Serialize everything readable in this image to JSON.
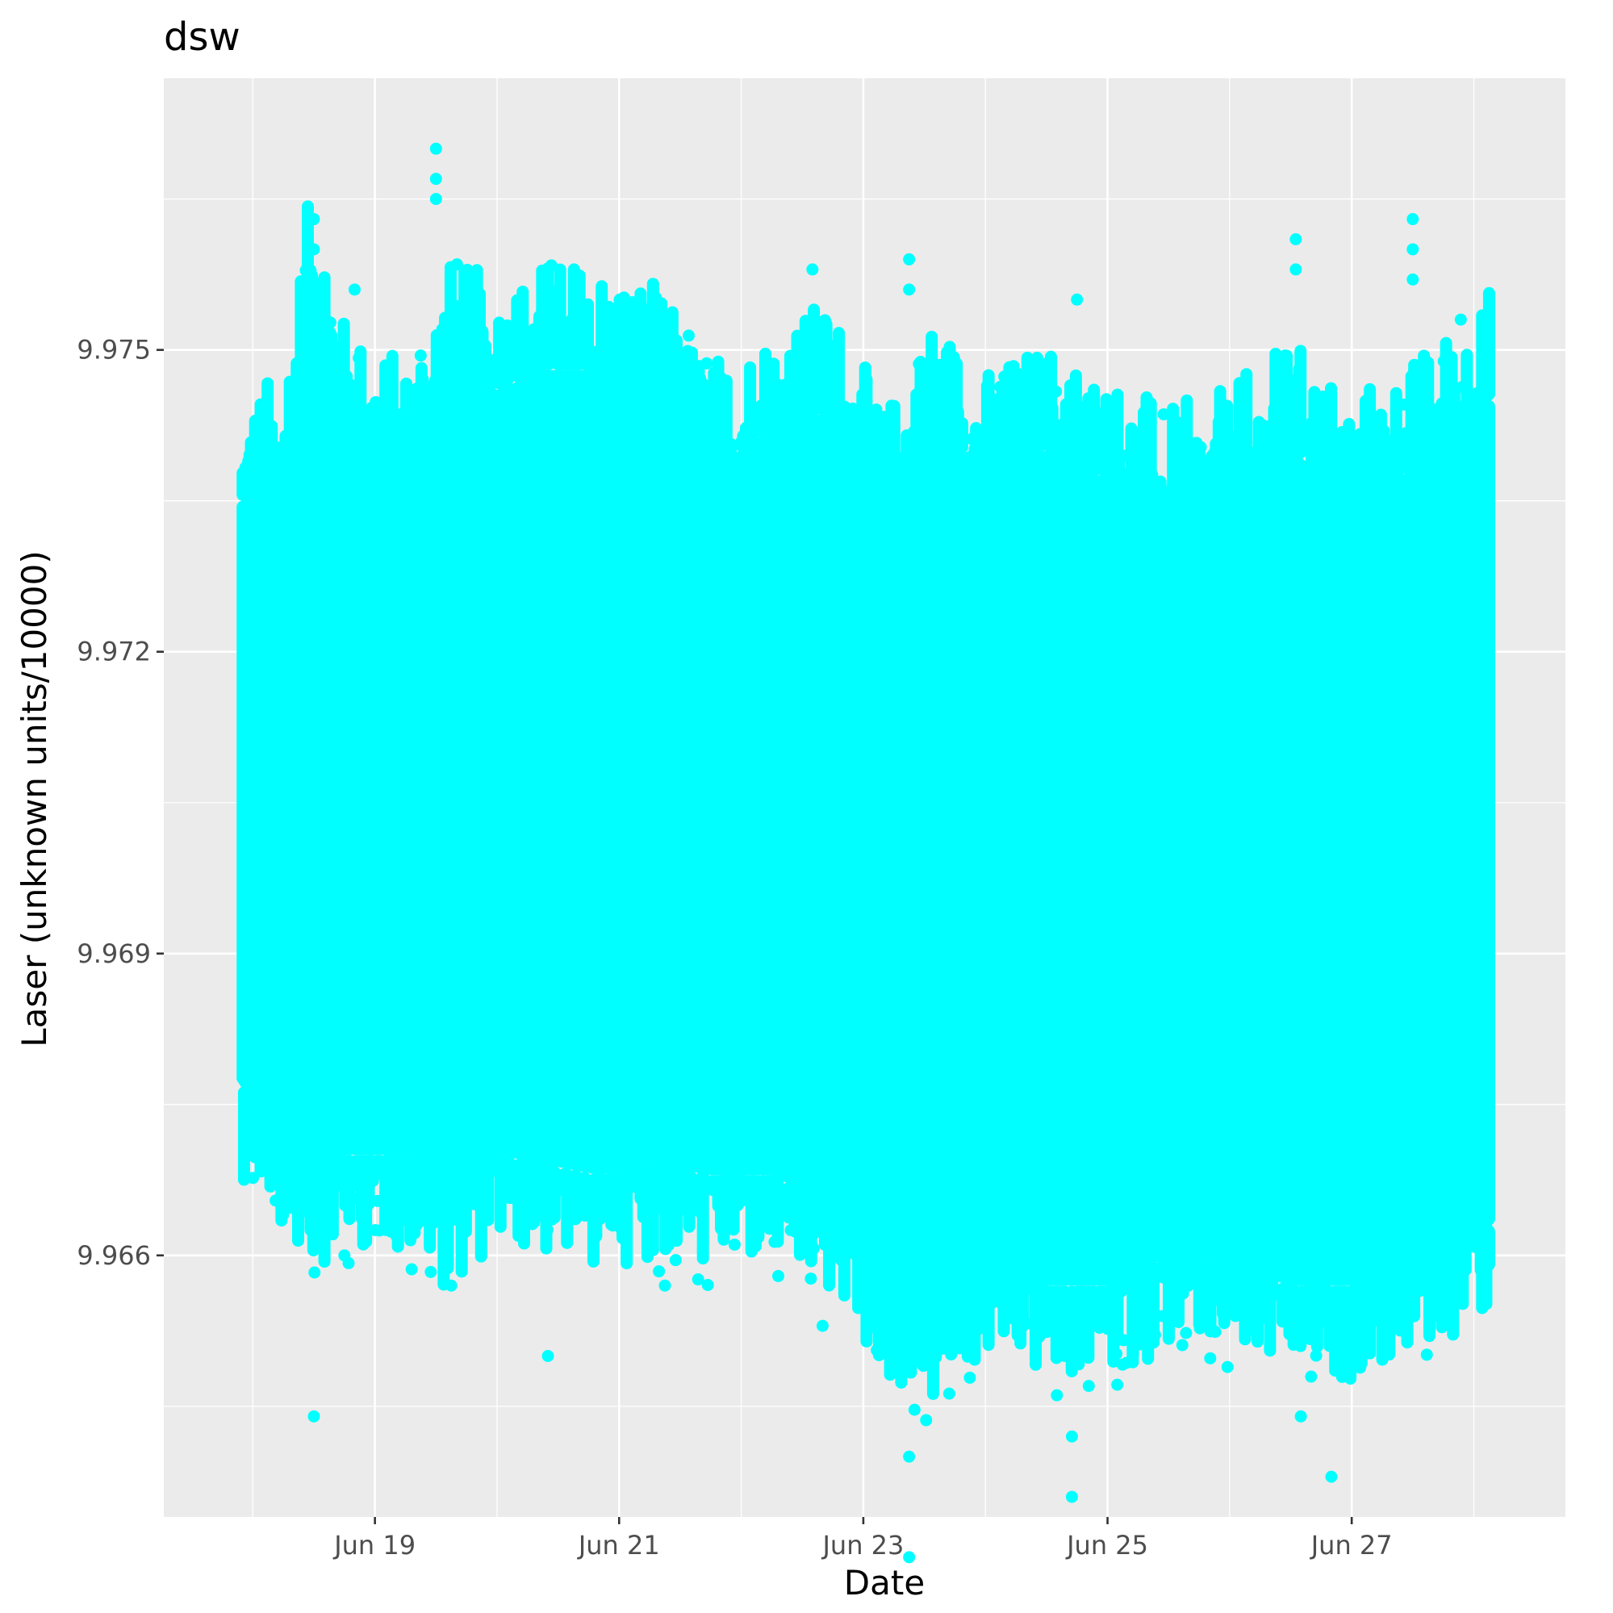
{
  "chart_data": {
    "type": "scatter",
    "title": "dsw",
    "xlabel": "Date",
    "ylabel": "Laser (unknown units/10000)",
    "x_ticks": [
      "Jun 19",
      "Jun 21",
      "Jun 23",
      "Jun 25",
      "Jun 27"
    ],
    "y_ticks": [
      9.966,
      9.969,
      9.972,
      9.975
    ],
    "x_range": [
      "Jun 17 06:30",
      "Jun 28 18:00"
    ],
    "ylim": [
      9.9634,
      9.9777
    ],
    "x_data_range": [
      "Jun 17 21:00",
      "Jun 28 03:00"
    ],
    "grid": true,
    "point_color": "#00FFFF",
    "panel_background": "#EBEBEB",
    "grid_color": "#FFFFFF",
    "series": [
      {
        "band_profile": [
          {
            "date": "Jun 17 22:00",
            "low": 9.9677,
            "high": 9.9735
          },
          {
            "date": "Jun 18 06:00",
            "low": 9.9671,
            "high": 9.9737
          },
          {
            "date": "Jun 18 12:00",
            "low": 9.9668,
            "high": 9.9757
          },
          {
            "date": "Jun 18 18:00",
            "low": 9.967,
            "high": 9.9742
          },
          {
            "date": "Jun 19 06:00",
            "low": 9.967,
            "high": 9.9738
          },
          {
            "date": "Jun 19 14:00",
            "low": 9.9666,
            "high": 9.9748
          },
          {
            "date": "Jun 20 00:00",
            "low": 9.967,
            "high": 9.9746
          },
          {
            "date": "Jun 20 10:00",
            "low": 9.9669,
            "high": 9.9748
          },
          {
            "date": "Jun 20 20:00",
            "low": 9.9668,
            "high": 9.9748
          },
          {
            "date": "Jun 21 06:00",
            "low": 9.9669,
            "high": 9.9746
          },
          {
            "date": "Jun 21 18:00",
            "low": 9.9668,
            "high": 9.9738
          },
          {
            "date": "Jun 22 06:00",
            "low": 9.9668,
            "high": 9.9742
          },
          {
            "date": "Jun 22 18:00",
            "low": 9.9665,
            "high": 9.9744
          },
          {
            "date": "Jun 23 04:00",
            "low": 9.9657,
            "high": 9.9733
          },
          {
            "date": "Jun 23 14:00",
            "low": 9.9654,
            "high": 9.9743
          },
          {
            "date": "Jun 24 00:00",
            "low": 9.9659,
            "high": 9.9737
          },
          {
            "date": "Jun 24 12:00",
            "low": 9.9657,
            "high": 9.974
          },
          {
            "date": "Jun 25 00:00",
            "low": 9.9657,
            "high": 9.9737
          },
          {
            "date": "Jun 25 12:00",
            "low": 9.966,
            "high": 9.9733
          },
          {
            "date": "Jun 26 00:00",
            "low": 9.9659,
            "high": 9.9735
          },
          {
            "date": "Jun 26 12:00",
            "low": 9.9657,
            "high": 9.974
          },
          {
            "date": "Jun 27 00:00",
            "low": 9.9657,
            "high": 9.9735
          },
          {
            "date": "Jun 27 12:00",
            "low": 9.9659,
            "high": 9.9738
          },
          {
            "date": "Jun 28 03:00",
            "low": 9.9663,
            "high": 9.9745
          }
        ],
        "outliers": [
          {
            "date": "Jun 19 12:00",
            "y": 9.977
          },
          {
            "date": "Jun 19 12:00",
            "y": 9.9767
          },
          {
            "date": "Jun 19 12:00",
            "y": 9.9765
          },
          {
            "date": "Jun 18 12:00",
            "y": 9.9763
          },
          {
            "date": "Jun 18 12:00",
            "y": 9.976
          },
          {
            "date": "Jun 18 20:00",
            "y": 9.9756
          },
          {
            "date": "Jun 22 14:00",
            "y": 9.9758
          },
          {
            "date": "Jun 23 09:00",
            "y": 9.9759
          },
          {
            "date": "Jun 23 09:00",
            "y": 9.9756
          },
          {
            "date": "Jun 24 18:00",
            "y": 9.9755
          },
          {
            "date": "Jun 26 13:00",
            "y": 9.9761
          },
          {
            "date": "Jun 26 13:00",
            "y": 9.9758
          },
          {
            "date": "Jun 27 12:00",
            "y": 9.9763
          },
          {
            "date": "Jun 27 12:00",
            "y": 9.976
          },
          {
            "date": "Jun 27 12:00",
            "y": 9.9757
          },
          {
            "date": "Jun 18 12:00",
            "y": 9.9644
          },
          {
            "date": "Jun 20 10:00",
            "y": 9.965
          },
          {
            "date": "Jun 23 09:00",
            "y": 9.964
          },
          {
            "date": "Jun 23 09:00",
            "y": 9.963
          },
          {
            "date": "Jun 24 17:00",
            "y": 9.9636
          },
          {
            "date": "Jun 24 17:00",
            "y": 9.9642
          },
          {
            "date": "Jun 26 20:00",
            "y": 9.9638
          },
          {
            "date": "Jun 26 14:00",
            "y": 9.9644
          },
          {
            "date": "Jun 21 09:00",
            "y": 9.9657
          },
          {
            "date": "Jun 19 15:00",
            "y": 9.9657
          },
          {
            "date": "Jun 18 18:00",
            "y": 9.966
          },
          {
            "date": "Jun 22 16:00",
            "y": 9.9653
          }
        ]
      }
    ]
  }
}
